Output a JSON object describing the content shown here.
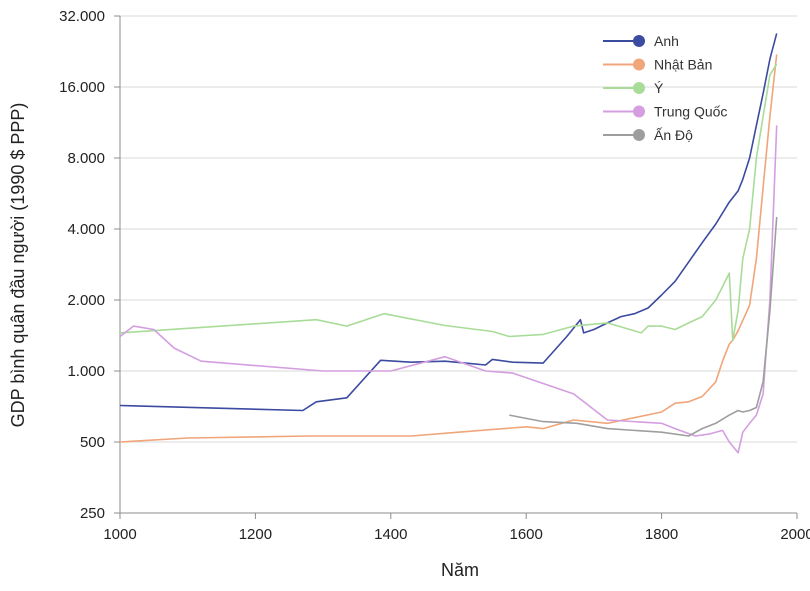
{
  "chart_data": {
    "type": "line",
    "title": "",
    "xlabel": "Năm",
    "ylabel": "GDP bình quân đầu người (1990 $ PPP)",
    "xlim": [
      1000,
      2000
    ],
    "ylim": [
      250,
      32000
    ],
    "yscale": "log2",
    "xticks": [
      1000,
      1200,
      1400,
      1600,
      1800,
      2000
    ],
    "xtick_labels": [
      "1000",
      "1200",
      "1400",
      "1600",
      "1800",
      "2000"
    ],
    "yticks": [
      250,
      500,
      1000,
      2000,
      4000,
      8000,
      16000,
      32000
    ],
    "ytick_labels": [
      "250",
      "500",
      "1.000",
      "2.000",
      "4.000",
      "8.000",
      "16.000",
      "32.000"
    ],
    "grid": "horizontal",
    "legend_position": "top-right",
    "series": [
      {
        "name": "Anh",
        "color": "#3b4ba0",
        "x": [
          1000,
          1270,
          1290,
          1335,
          1385,
          1430,
          1480,
          1510,
          1540,
          1550,
          1580,
          1625,
          1660,
          1680,
          1685,
          1700,
          1720,
          1740,
          1760,
          1780,
          1800,
          1820,
          1840,
          1860,
          1880,
          1900,
          1913,
          1920,
          1930,
          1940,
          1950,
          1960,
          1970
        ],
        "y": [
          714,
          680,
          740,
          770,
          1110,
          1090,
          1100,
          1080,
          1060,
          1120,
          1090,
          1080,
          1400,
          1650,
          1450,
          1500,
          1600,
          1700,
          1750,
          1850,
          2100,
          2400,
          2900,
          3500,
          4200,
          5200,
          5800,
          6500,
          8000,
          11000,
          15000,
          21000,
          27000
        ]
      },
      {
        "name": "Nhật Bản",
        "color": "#f0a57a",
        "x": [
          1000,
          1100,
          1280,
          1430,
          1500,
          1600,
          1625,
          1670,
          1720,
          1800,
          1820,
          1840,
          1860,
          1880,
          1890,
          1900,
          1905,
          1913,
          1930,
          1940,
          1950,
          1960,
          1970
        ],
        "y": [
          500,
          520,
          530,
          530,
          550,
          580,
          570,
          620,
          600,
          670,
          730,
          740,
          780,
          900,
          1100,
          1300,
          1350,
          1480,
          1900,
          3000,
          6000,
          12000,
          22000
        ]
      },
      {
        "name": "Ý",
        "color": "#a8dc98",
        "x": [
          1000,
          1290,
          1335,
          1390,
          1480,
          1550,
          1575,
          1625,
          1670,
          1720,
          1770,
          1780,
          1800,
          1820,
          1840,
          1860,
          1880,
          1900,
          1905,
          1913,
          1920,
          1930,
          1940,
          1950,
          1960,
          1970
        ],
        "y": [
          1450,
          1650,
          1550,
          1750,
          1560,
          1470,
          1400,
          1430,
          1550,
          1600,
          1450,
          1550,
          1550,
          1500,
          1600,
          1700,
          2000,
          2600,
          1350,
          1800,
          3000,
          4000,
          8000,
          12000,
          18000,
          20000
        ]
      },
      {
        "name": "Trung Quốc",
        "color": "#d49ee0",
        "x": [
          1000,
          1020,
          1050,
          1080,
          1120,
          1300,
          1400,
          1480,
          1540,
          1580,
          1670,
          1720,
          1800,
          1820,
          1850,
          1870,
          1890,
          1900,
          1913,
          1920,
          1930,
          1940,
          1950,
          1960,
          1970
        ],
        "y": [
          1400,
          1550,
          1500,
          1250,
          1100,
          1000,
          1000,
          1150,
          1000,
          980,
          800,
          620,
          600,
          570,
          530,
          540,
          560,
          500,
          450,
          550,
          600,
          650,
          800,
          2000,
          11000
        ]
      },
      {
        "name": "Ấn Độ",
        "color": "#9e9e9e",
        "x": [
          1575,
          1625,
          1675,
          1720,
          1800,
          1840,
          1860,
          1880,
          1900,
          1913,
          1920,
          1930,
          1940,
          1950,
          1960,
          1970
        ],
        "y": [
          650,
          610,
          600,
          570,
          550,
          530,
          570,
          600,
          650,
          680,
          670,
          680,
          700,
          900,
          1800,
          4500
        ]
      }
    ]
  }
}
